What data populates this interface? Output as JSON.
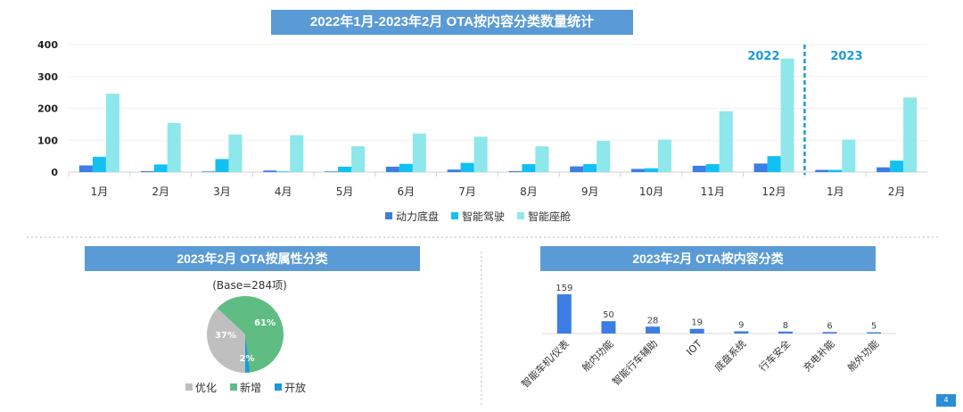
{
  "colors": {
    "banner": "#5b9bd5",
    "power": "#3c7de6",
    "adas": "#12c0f2",
    "cockpit": "#8ee7ea",
    "divider": "#1d9ad6",
    "gray": "#bfbfbf",
    "green": "#5fbd83",
    "blue": "#1d9ad6",
    "bar": "#3c7de6"
  },
  "chart_data": [
    {
      "type": "bar",
      "title": "2022年1月-2023年2月 OTA按内容分类数量统计",
      "categories": [
        "1月",
        "2月",
        "3月",
        "4月",
        "5月",
        "6月",
        "7月",
        "8月",
        "9月",
        "10月",
        "11月",
        "12月",
        "1月",
        "2月"
      ],
      "series": [
        {
          "name": "动力底盘",
          "values": [
            21,
            3,
            2,
            5,
            2,
            17,
            8,
            3,
            18,
            10,
            20,
            27,
            7,
            15
          ]
        },
        {
          "name": "智能驾驶",
          "values": [
            48,
            24,
            41,
            2,
            17,
            26,
            29,
            25,
            25,
            12,
            25,
            50,
            7,
            36
          ]
        },
        {
          "name": "智能座舱",
          "values": [
            246,
            154,
            118,
            116,
            81,
            121,
            111,
            81,
            98,
            102,
            191,
            356,
            102,
            234
          ]
        }
      ],
      "yticks": [
        "0",
        "100",
        "200",
        "300",
        "400"
      ],
      "ylim": [
        0,
        400
      ],
      "annotations": [
        "2022",
        "2023"
      ],
      "legend": "bottom",
      "grid": true
    },
    {
      "type": "pie",
      "title": "2023年2月 OTA按属性分类",
      "subtitle": "(Base=284项)",
      "slices": [
        {
          "name": "优化",
          "value": 37,
          "label": "37%"
        },
        {
          "name": "新增",
          "value": 61,
          "label": "61%"
        },
        {
          "name": "开放",
          "value": 2,
          "label": "2%"
        }
      ],
      "legend": "bottom"
    },
    {
      "type": "bar",
      "title": "2023年2月 OTA按内容分类",
      "categories": [
        "智能车机/仪表",
        "舱内功能",
        "智能行车辅助",
        "IOT",
        "底盘系统",
        "行车安全",
        "充电补能",
        "舱外功能"
      ],
      "values": [
        159,
        50,
        28,
        19,
        9,
        8,
        6,
        5
      ]
    }
  ],
  "page_number": "4"
}
